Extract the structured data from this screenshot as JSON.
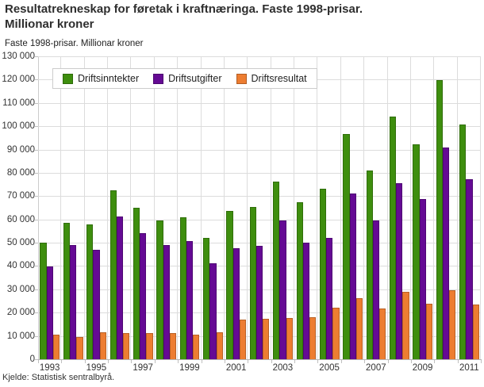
{
  "header": {
    "title_line1": "Resultatrekneskap for føretak i kraftnæringa. Faste 1998-prisar.",
    "title_line2": "Millionar kroner",
    "subtitle": "Faste 1998-prisar. Millionar kroner"
  },
  "footer": {
    "source": "Kjelde: Statistisk sentralbyrå."
  },
  "colors": {
    "green": "#3e8e0e",
    "purple": "#650a94",
    "orange": "#ed7d31",
    "grid": "#dcdcdc",
    "axis": "#b5b5b5",
    "text": "#333333"
  },
  "chart_data": {
    "type": "bar",
    "title": "Resultatrekneskap for føretak i kraftnæringa. Faste 1998-prisar. Millionar kroner",
    "subtitle": "Faste 1998-prisar. Millionar kroner",
    "source": "Kjelde: Statistisk sentralbyrå.",
    "categories": [
      1993,
      1994,
      1995,
      1996,
      1997,
      1998,
      1999,
      2000,
      2001,
      2002,
      2003,
      2004,
      2005,
      2006,
      2007,
      2008,
      2009,
      2010,
      2011
    ],
    "x_tick_labels": [
      "1993",
      "1995",
      "1997",
      "1999",
      "2001",
      "2003",
      "2005",
      "2007",
      "2009",
      "2011"
    ],
    "series": [
      {
        "name": "Driftsinntekter",
        "color_key": "green",
        "values": [
          49900,
          58400,
          57800,
          72500,
          65000,
          59500,
          61000,
          52200,
          63600,
          65400,
          76400,
          67500,
          73300,
          96600,
          81000,
          104200,
          92100,
          119900,
          100600
        ]
      },
      {
        "name": "Driftsutgifter",
        "color_key": "purple",
        "values": [
          39900,
          49000,
          47100,
          61300,
          54100,
          48900,
          50800,
          41300,
          47500,
          48600,
          59400,
          50000,
          52200,
          71200,
          59700,
          75600,
          68800,
          90800,
          77400
        ]
      },
      {
        "name": "Driftsresultat",
        "color_key": "orange",
        "values": [
          10400,
          9400,
          11500,
          11400,
          11200,
          11100,
          10500,
          11600,
          16900,
          17400,
          17600,
          17900,
          22000,
          26100,
          21800,
          29000,
          23800,
          29600,
          23600
        ]
      }
    ],
    "ylim": [
      0,
      130000
    ],
    "y_tick_step": 10000,
    "y_tick_labels": [
      "0",
      "10 000",
      "20 000",
      "30 000",
      "40 000",
      "50 000",
      "60 000",
      "70 000",
      "80 000",
      "90 000",
      "100 000",
      "110 000",
      "120 000",
      "130 000"
    ],
    "grid": true,
    "legend_position": "top-left-inside"
  }
}
